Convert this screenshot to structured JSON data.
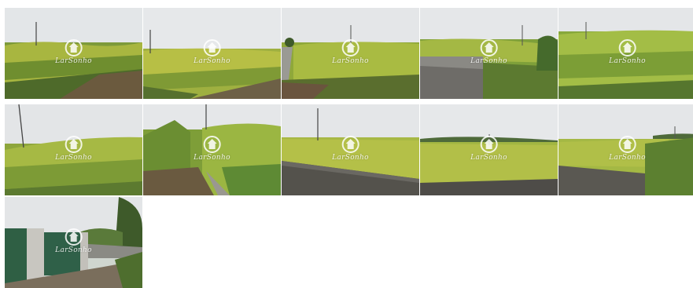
{
  "watermark": {
    "text": "LarSonho",
    "icon": "house-circle-icon"
  },
  "photos": [
    {
      "scene": "corn-field-dirt-path"
    },
    {
      "scene": "corn-field-stone-edge"
    },
    {
      "scene": "corn-field-road"
    },
    {
      "scene": "stone-wall-corn"
    },
    {
      "scene": "tall-corn"
    },
    {
      "scene": "corn-field-sky"
    },
    {
      "scene": "corn-close"
    },
    {
      "scene": "field-wall-pole"
    },
    {
      "scene": "field-wall-wide"
    },
    {
      "scene": "field-wall-corner"
    },
    {
      "scene": "gate-lane"
    }
  ]
}
